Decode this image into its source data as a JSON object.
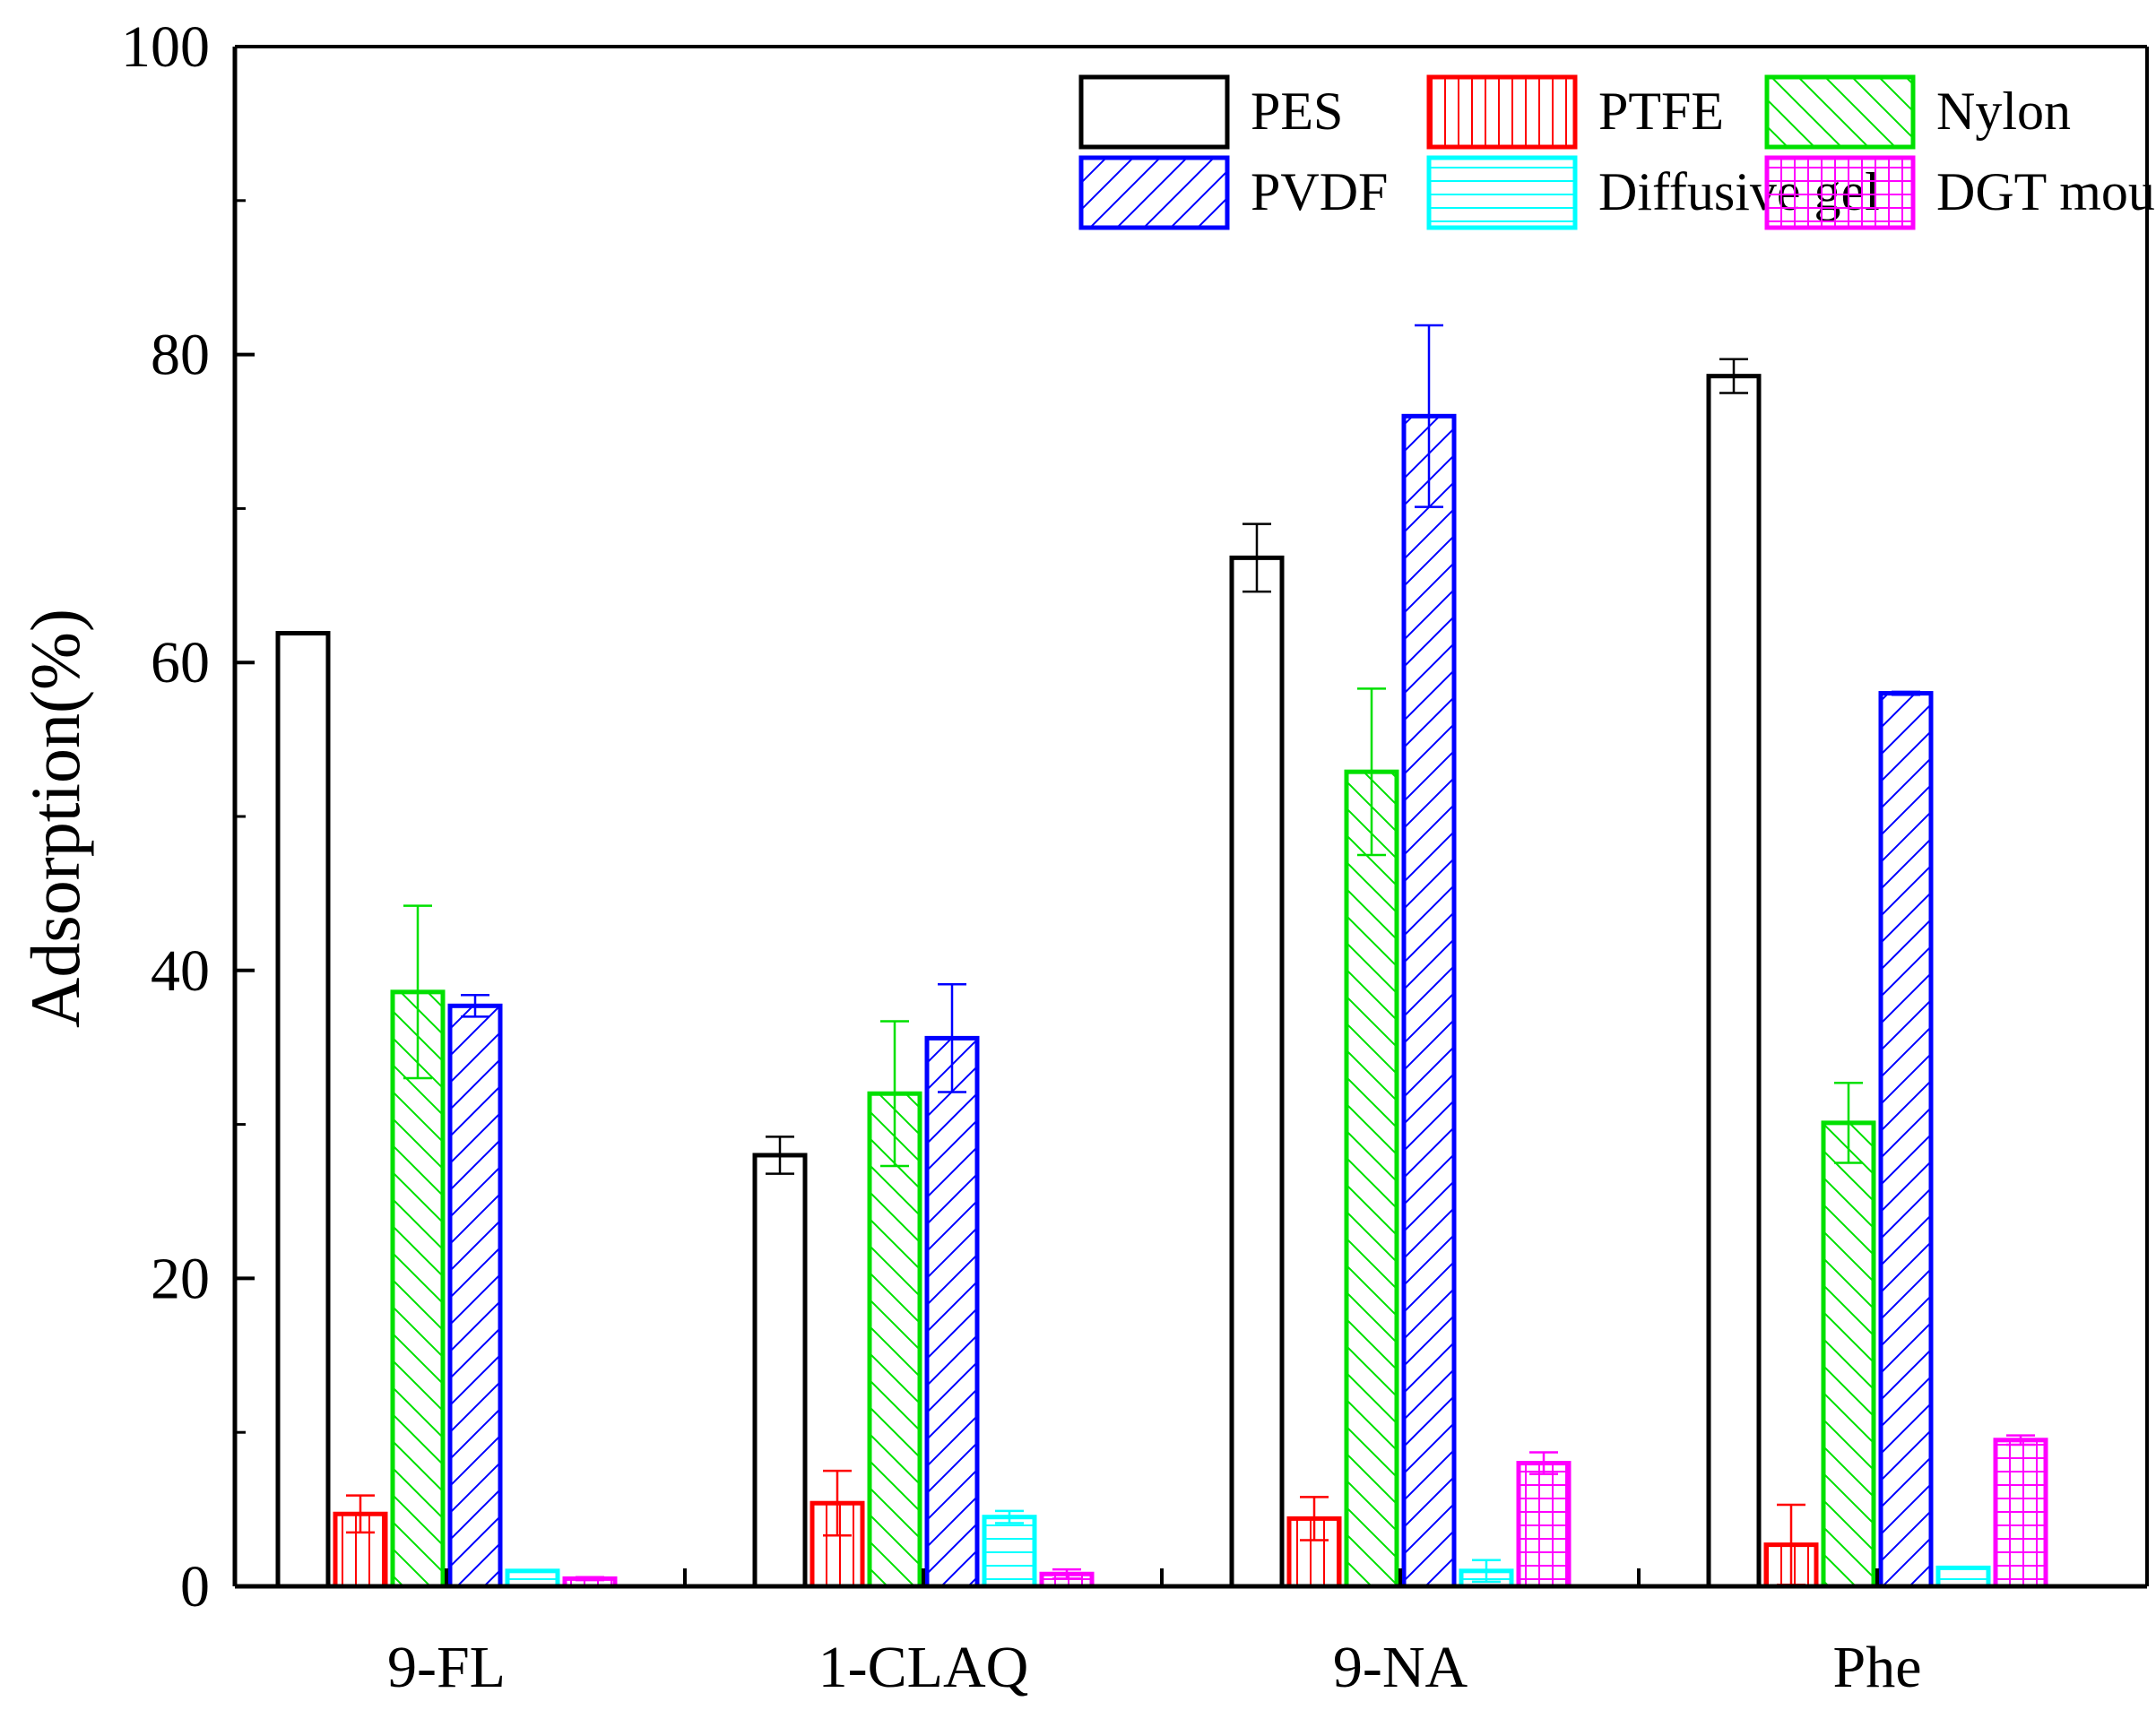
{
  "chart_data": {
    "type": "bar",
    "title": "",
    "xlabel": "",
    "ylabel": "Adsorption(%)",
    "ylim": [
      0,
      100
    ],
    "yticks": [
      0,
      20,
      40,
      60,
      80,
      100
    ],
    "grid": false,
    "legend_position": "top-right",
    "categories": [
      "9-FL",
      "1-CLAQ",
      "9-NA",
      "Phe"
    ],
    "series": [
      {
        "name": "PES",
        "color": "#000000",
        "pattern": "none",
        "values": [
          61.9,
          28.0,
          66.8,
          78.6
        ],
        "errors": [
          0.0,
          1.2,
          2.2,
          1.1
        ]
      },
      {
        "name": "PTFE",
        "color": "#ff0000",
        "pattern": "vertical",
        "values": [
          4.7,
          5.4,
          4.4,
          2.7
        ],
        "errors": [
          1.2,
          2.1,
          1.4,
          2.6
        ]
      },
      {
        "name": "Nylon",
        "color": "#00e000",
        "pattern": "back-diagonal",
        "values": [
          38.6,
          32.0,
          52.9,
          30.1
        ],
        "errors": [
          5.6,
          4.7,
          5.4,
          2.6
        ]
      },
      {
        "name": "PVDF",
        "color": "#0000ff",
        "pattern": "forward-diagonal",
        "values": [
          37.7,
          35.6,
          76.0,
          58.0
        ],
        "errors": [
          0.7,
          3.5,
          5.9,
          0.1
        ]
      },
      {
        "name": "Diffusive gel",
        "color": "#00ffff",
        "pattern": "horizontal",
        "values": [
          1.0,
          4.5,
          1.0,
          1.2
        ],
        "errors": [
          0.0,
          0.4,
          0.7,
          0.0
        ]
      },
      {
        "name": "DGT moulding",
        "color": "#ff00ff",
        "pattern": "grid",
        "values": [
          0.5,
          0.8,
          8.0,
          9.5
        ],
        "errors": [
          0.1,
          0.3,
          0.7,
          0.3
        ]
      }
    ]
  }
}
